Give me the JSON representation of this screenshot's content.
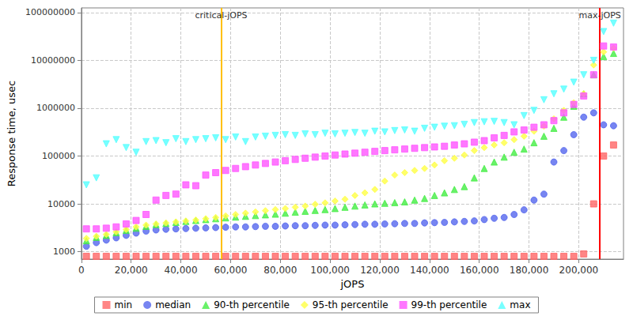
{
  "chart_data": {
    "type": "scatter",
    "x_label": "jOPS",
    "y_label": "Response time, usec",
    "log": "y",
    "grid": true,
    "legend": "bottom",
    "xlim": [
      0,
      218000
    ],
    "ylim": [
      700,
      125000000
    ],
    "xticks": [
      0,
      {
        "value": 20000,
        "label": "20,000"
      },
      {
        "value": 40000,
        "label": "40,000"
      },
      {
        "value": 60000,
        "label": "60,000"
      },
      {
        "value": 80000,
        "label": "80,000"
      },
      {
        "value": 100000,
        "label": "100,000"
      },
      {
        "value": 120000,
        "label": "120,000"
      },
      {
        "value": 140000,
        "label": "140,000"
      },
      {
        "value": 160000,
        "label": "160,000"
      },
      {
        "value": 180000,
        "label": "180,000"
      },
      {
        "value": 200000,
        "label": "200,000"
      }
    ],
    "yticks": [
      1000,
      10000,
      100000,
      1000000,
      10000000,
      100000000
    ],
    "annotations": [
      {
        "label": "critical-jOPS",
        "x": 56200,
        "color": "#ffc000"
      },
      {
        "label": "max-jOPS",
        "x": 208500,
        "color": "#ff0000"
      }
    ],
    "x": [
      2000,
      6000,
      10000,
      14000,
      18000,
      22000,
      26000,
      30000,
      34000,
      38000,
      42000,
      46000,
      50000,
      54000,
      58000,
      62000,
      66000,
      70000,
      74000,
      78000,
      82000,
      86000,
      90000,
      94000,
      98000,
      102000,
      106000,
      110000,
      114000,
      118000,
      122000,
      126000,
      130000,
      134000,
      138000,
      142000,
      146000,
      150000,
      154000,
      158000,
      162000,
      166000,
      170000,
      174000,
      178000,
      182000,
      186000,
      190000,
      194000,
      198000,
      202000,
      206000,
      210000,
      214000
    ],
    "series": [
      {
        "name": "min",
        "color": "#ff6666",
        "marker": "square",
        "values": [
          800,
          800,
          800,
          800,
          800,
          800,
          800,
          800,
          800,
          800,
          800,
          800,
          800,
          800,
          800,
          800,
          800,
          800,
          800,
          800,
          800,
          800,
          800,
          800,
          800,
          800,
          800,
          800,
          800,
          800,
          800,
          800,
          800,
          800,
          800,
          800,
          800,
          800,
          800,
          800,
          800,
          800,
          800,
          800,
          800,
          800,
          800,
          800,
          800,
          800,
          900,
          10000,
          100000,
          170000
        ]
      },
      {
        "name": "median",
        "color": "#5566ee",
        "marker": "circle",
        "values": [
          1300,
          1550,
          1750,
          1950,
          2200,
          2450,
          2700,
          2850,
          2950,
          3000,
          3050,
          3100,
          3150,
          3200,
          3250,
          3300,
          3300,
          3350,
          3400,
          3400,
          3450,
          3500,
          3500,
          3550,
          3600,
          3600,
          3650,
          3700,
          3750,
          3750,
          3800,
          3850,
          3900,
          3900,
          4000,
          4050,
          4100,
          4200,
          4300,
          4400,
          4700,
          5000,
          5200,
          6000,
          7500,
          12000,
          16000,
          75000,
          130000,
          280000,
          650000,
          800000,
          450000,
          430000
        ]
      },
      {
        "name": "90-th percentile",
        "color": "#44ee44",
        "marker": "triangle",
        "values": [
          1700,
          2000,
          2200,
          2500,
          2800,
          3100,
          3400,
          3700,
          3900,
          4100,
          4300,
          4500,
          4700,
          4900,
          5100,
          5300,
          5500,
          5700,
          5900,
          6100,
          6400,
          6700,
          7000,
          7300,
          7600,
          8000,
          8500,
          9000,
          9500,
          10000,
          10300,
          10600,
          11000,
          12000,
          13000,
          15000,
          17000,
          20000,
          23000,
          35000,
          55000,
          75000,
          95000,
          120000,
          140000,
          190000,
          260000,
          380000,
          650000,
          1100000,
          2000000,
          5000000,
          12000000,
          14000000
        ]
      },
      {
        "name": "95-th percentile",
        "color": "#ffff44",
        "marker": "diamond",
        "values": [
          1900,
          2100,
          2300,
          2600,
          2900,
          3300,
          3600,
          3800,
          4000,
          4200,
          4400,
          4600,
          4900,
          5200,
          5600,
          6000,
          6400,
          6800,
          7200,
          7600,
          8000,
          8500,
          9000,
          9800,
          10500,
          11500,
          12500,
          15000,
          17000,
          20000,
          30000,
          40000,
          45000,
          50000,
          55000,
          65000,
          80000,
          90000,
          105000,
          130000,
          150000,
          170000,
          190000,
          220000,
          260000,
          330000,
          420000,
          600000,
          900000,
          1300000,
          2000000,
          8000000,
          15000000,
          18000000
        ]
      },
      {
        "name": "99-th percentile",
        "color": "#ff55ff",
        "marker": "square",
        "values": [
          3000,
          3000,
          3100,
          3300,
          3800,
          4500,
          6000,
          12000,
          15000,
          16000,
          25000,
          24000,
          40000,
          45000,
          50000,
          55000,
          60000,
          65000,
          70000,
          75000,
          80000,
          85000,
          90000,
          95000,
          100000,
          105000,
          110000,
          115000,
          120000,
          125000,
          130000,
          135000,
          140000,
          145000,
          150000,
          155000,
          160000,
          170000,
          180000,
          195000,
          210000,
          240000,
          270000,
          320000,
          350000,
          400000,
          450000,
          550000,
          800000,
          1200000,
          1800000,
          5000000,
          20000000,
          19000000
        ]
      },
      {
        "name": "max",
        "color": "#55ffff",
        "marker": "triangle-down",
        "values": [
          25000,
          35000,
          180000,
          220000,
          150000,
          120000,
          200000,
          210000,
          190000,
          230000,
          200000,
          220000,
          230000,
          240000,
          220000,
          250000,
          200000,
          250000,
          260000,
          270000,
          280000,
          270000,
          290000,
          280000,
          300000,
          290000,
          300000,
          310000,
          300000,
          330000,
          320000,
          340000,
          350000,
          330000,
          380000,
          400000,
          420000,
          430000,
          460000,
          500000,
          520000,
          530000,
          500000,
          450000,
          700000,
          900000,
          1500000,
          2000000,
          2500000,
          3500000,
          5000000,
          10000000,
          40000000,
          60000000
        ]
      }
    ]
  }
}
